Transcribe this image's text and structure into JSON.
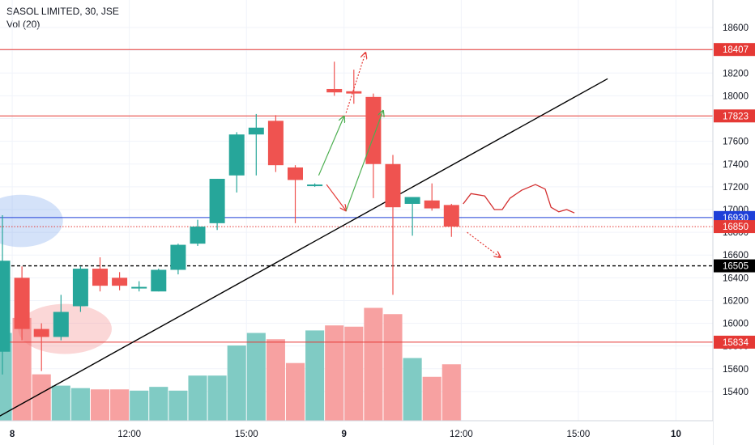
{
  "legend": {
    "title": "SASOL LIMITED, 30, JSE",
    "volume_label": "Vol (20)"
  },
  "colors": {
    "up": "#26a69a",
    "down": "#ef5350",
    "vol_up": "#80cbc4",
    "vol_down": "#f7a1a1",
    "resistance": "#e53935",
    "blue_line": "#1e3fd8",
    "trend": "#000000",
    "arrow_green": "#4caf50",
    "arrow_red": "#e53935"
  },
  "chart_data": {
    "type": "candlestick",
    "title": "SASOL LIMITED, 30, JSE",
    "ylim": [
      15250,
      18700
    ],
    "y_ticks": [
      15400,
      15600,
      15800,
      16000,
      16200,
      16400,
      16600,
      16800,
      17000,
      17200,
      17400,
      17600,
      17800,
      18000,
      18200,
      18400,
      18600
    ],
    "x_ticks": [
      {
        "label": "8",
        "bar": 0.5,
        "bold": true
      },
      {
        "label": "12:00",
        "bar": 6.5,
        "bold": false
      },
      {
        "label": "15:00",
        "bar": 12.5,
        "bold": false
      },
      {
        "label": "9",
        "bar": 17.5,
        "bold": true
      },
      {
        "label": "12:00",
        "bar": 23.5,
        "bold": false
      },
      {
        "label": "15:00",
        "bar": 29.5,
        "bold": false
      },
      {
        "label": "10",
        "bar": 34.5,
        "bold": true
      }
    ],
    "candles": [
      {
        "o": 15750,
        "h": 16950,
        "l": 15550,
        "c": 16550
      },
      {
        "o": 16400,
        "h": 16500,
        "l": 15850,
        "c": 15950
      },
      {
        "o": 15950,
        "h": 16000,
        "l": 15580,
        "c": 15880
      },
      {
        "o": 15880,
        "h": 16250,
        "l": 15850,
        "c": 16100
      },
      {
        "o": 16150,
        "h": 16500,
        "l": 16100,
        "c": 16480
      },
      {
        "o": 16480,
        "h": 16580,
        "l": 16280,
        "c": 16330
      },
      {
        "o": 16400,
        "h": 16450,
        "l": 16290,
        "c": 16330
      },
      {
        "o": 16320,
        "h": 16370,
        "l": 16280,
        "c": 16320
      },
      {
        "o": 16280,
        "h": 16480,
        "l": 16280,
        "c": 16470
      },
      {
        "o": 16470,
        "h": 16700,
        "l": 16430,
        "c": 16690
      },
      {
        "o": 16700,
        "h": 16910,
        "l": 16680,
        "c": 16850
      },
      {
        "o": 16880,
        "h": 17270,
        "l": 16820,
        "c": 17270
      },
      {
        "o": 17300,
        "h": 17680,
        "l": 17150,
        "c": 17660
      },
      {
        "o": 17660,
        "h": 17840,
        "l": 17300,
        "c": 17720
      },
      {
        "o": 17780,
        "h": 17830,
        "l": 17330,
        "c": 17390
      },
      {
        "o": 17370,
        "h": 17390,
        "l": 16880,
        "c": 17260
      },
      {
        "o": 17220,
        "h": 17230,
        "l": 17200,
        "c": 17220
      },
      {
        "o": 18060,
        "h": 18300,
        "l": 18000,
        "c": 18030
      },
      {
        "o": 18040,
        "h": 18230,
        "l": 17930,
        "c": 18020
      },
      {
        "o": 17990,
        "h": 18020,
        "l": 17100,
        "c": 17400
      },
      {
        "o": 17400,
        "h": 17480,
        "l": 16250,
        "c": 17020
      },
      {
        "o": 17050,
        "h": 17110,
        "l": 16770,
        "c": 17110
      },
      {
        "o": 17080,
        "h": 17230,
        "l": 16990,
        "c": 17010
      },
      {
        "o": 17040,
        "h": 17050,
        "l": 16760,
        "c": 16850
      }
    ],
    "volume": [
      0.7,
      0.82,
      0.37,
      0.28,
      0.26,
      0.25,
      0.25,
      0.24,
      0.27,
      0.24,
      0.36,
      0.36,
      0.6,
      0.7,
      0.65,
      0.46,
      0.72,
      0.76,
      0.75,
      0.9,
      0.85,
      0.5,
      0.35,
      0.45
    ],
    "horizontal_levels": [
      {
        "value": 18407,
        "label": "18407",
        "style": "red"
      },
      {
        "value": 17823,
        "label": "17823",
        "style": "red"
      },
      {
        "value": 16930,
        "label": "16930",
        "style": "blue"
      },
      {
        "value": 16850,
        "label": "16850",
        "style": "dotted-red"
      },
      {
        "value": 16505,
        "label": "16505",
        "style": "dashed-black"
      },
      {
        "value": 15834,
        "label": "15834",
        "style": "red"
      }
    ],
    "trend_line": {
      "from": {
        "bar": -0.5,
        "value": 15150
      },
      "to": {
        "bar": 31,
        "value": 18150
      }
    },
    "arrows": [
      {
        "from": {
          "bar": 16.2,
          "value": 17300
        },
        "to": {
          "bar": 17.5,
          "value": 17820
        },
        "color": "green",
        "dotted": false
      },
      {
        "from": {
          "bar": 17.6,
          "value": 17850
        },
        "to": {
          "bar": 18.6,
          "value": 18380
        },
        "color": "red",
        "dotted": true
      },
      {
        "from": {
          "bar": 16.6,
          "value": 17220
        },
        "to": {
          "bar": 17.6,
          "value": 16990
        },
        "color": "red",
        "dotted": false
      },
      {
        "from": {
          "bar": 17.6,
          "value": 16990
        },
        "to": {
          "bar": 19.5,
          "value": 17870
        },
        "color": "green",
        "dotted": false
      },
      {
        "from": {
          "bar": 23.8,
          "value": 16800
        },
        "to": {
          "bar": 25.5,
          "value": 16580
        },
        "color": "red",
        "dotted": true
      }
    ],
    "ellipses": [
      {
        "cx_bar": 0.95,
        "cy": 16900,
        "rx_bars": 2.15,
        "ry": 230,
        "color": "blue"
      },
      {
        "cx_bar": 3.2,
        "cy": 15950,
        "rx_bars": 2.4,
        "ry": 220,
        "color": "red"
      }
    ],
    "forecast_path": [
      {
        "bar": 23.6,
        "value": 17050
      },
      {
        "bar": 24.0,
        "value": 17140
      },
      {
        "bar": 24.7,
        "value": 17120
      },
      {
        "bar": 25.2,
        "value": 17000
      },
      {
        "bar": 25.6,
        "value": 17000
      },
      {
        "bar": 26.0,
        "value": 17100
      },
      {
        "bar": 26.6,
        "value": 17170
      },
      {
        "bar": 27.3,
        "value": 17220
      },
      {
        "bar": 27.8,
        "value": 17180
      },
      {
        "bar": 28.1,
        "value": 17020
      },
      {
        "bar": 28.5,
        "value": 16980
      },
      {
        "bar": 28.9,
        "value": 17000
      },
      {
        "bar": 29.3,
        "value": 16970
      }
    ]
  }
}
